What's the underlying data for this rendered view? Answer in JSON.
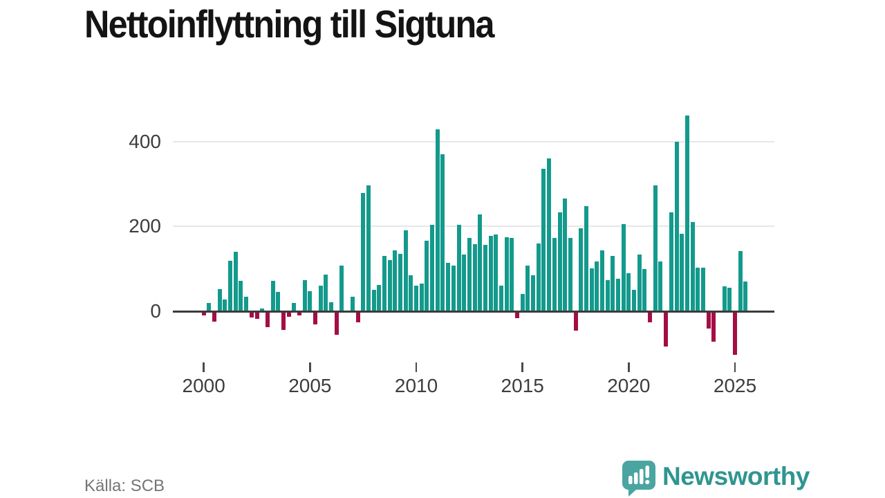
{
  "source": {
    "label": "Källa: SCB"
  },
  "brand": {
    "wordmark": "Newsworthy"
  },
  "colors": {
    "positive_bar": "#139a8c",
    "negative_bar": "#a50d45",
    "axis_line": "#3b3b3b",
    "gridline": "#e7e7e7",
    "title_text": "#141414",
    "tick_text": "#3d3d3d",
    "source_text": "#757575",
    "logo_bubble": "#4aa5a0",
    "logo_text": "#2f958f"
  },
  "chart_data": {
    "type": "bar",
    "title": "Nettoinflyttning till Sigtuna",
    "xlabel": "",
    "ylabel": "",
    "frequency": "quarterly",
    "start_period": "2000-Q1",
    "end_period": "2025-Q3",
    "x_tick_labels": [
      "2000",
      "2005",
      "2010",
      "2015",
      "2020",
      "2025"
    ],
    "y_ticks": [
      0,
      200,
      400
    ],
    "ylim": [
      -110,
      475
    ],
    "grid": true,
    "legend": false,
    "values": [
      -8,
      20,
      -22,
      52,
      27,
      119,
      140,
      72,
      34,
      -12,
      -16,
      6,
      -35,
      72,
      46,
      -42,
      -10,
      19,
      -7,
      73,
      47,
      -28,
      61,
      87,
      21,
      -53,
      108,
      0,
      34,
      -24,
      279,
      296,
      50,
      62,
      130,
      120,
      144,
      135,
      191,
      84,
      60,
      65,
      167,
      203,
      429,
      370,
      114,
      107,
      203,
      133,
      173,
      158,
      229,
      157,
      177,
      181,
      60,
      175,
      172,
      -14,
      41,
      108,
      84,
      159,
      336,
      360,
      173,
      233,
      266,
      172,
      -43,
      195,
      247,
      101,
      118,
      144,
      73,
      131,
      76,
      206,
      89,
      51,
      134,
      99,
      -23,
      296,
      117,
      -81,
      233,
      400,
      182,
      462,
      210,
      103,
      102,
      -38,
      -70,
      0,
      58,
      56,
      -100,
      142,
      70
    ]
  }
}
